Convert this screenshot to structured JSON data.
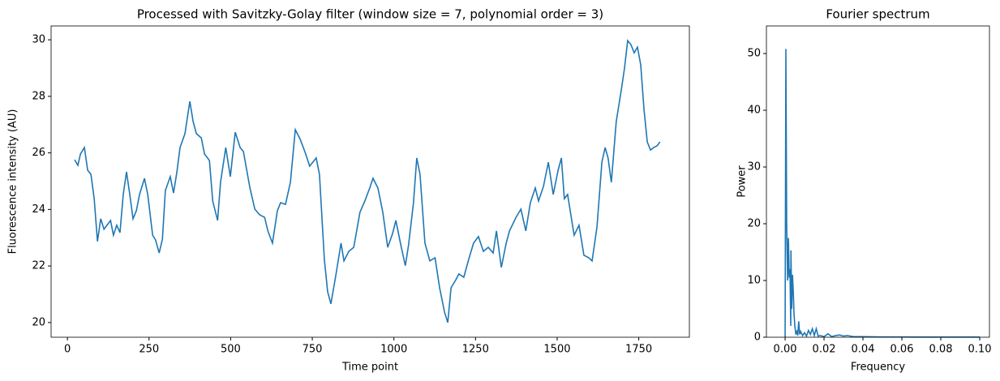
{
  "chart_data": [
    {
      "type": "line",
      "title": "Processed with Savitzky-Golay filter (window size = 7, polynomial order = 3)",
      "x_label": "Time point",
      "y_label": "Fluorescence intensity (AU)",
      "xlim": [
        -50,
        1905
      ],
      "ylim": [
        19.48,
        30.49
      ],
      "xticks": [
        0,
        250,
        500,
        750,
        1000,
        1250,
        1500,
        1750
      ],
      "yticks": [
        20,
        22,
        24,
        26,
        28,
        30
      ],
      "x": [
        22,
        32,
        40,
        52,
        62,
        72,
        82,
        92,
        102,
        112,
        132,
        141,
        151,
        161,
        171,
        181,
        191,
        201,
        211,
        221,
        236,
        246,
        261,
        270,
        281,
        291,
        300,
        315,
        325,
        335,
        345,
        360,
        375,
        385,
        395,
        410,
        420,
        435,
        445,
        460,
        469,
        485,
        499,
        514,
        529,
        539,
        559,
        574,
        589,
        604,
        614,
        628,
        643,
        653,
        668,
        683,
        698,
        713,
        728,
        742,
        762,
        772,
        787,
        797,
        807,
        822,
        838,
        847,
        862,
        877,
        896,
        911,
        926,
        936,
        951,
        966,
        981,
        996,
        1006,
        1021,
        1035,
        1045,
        1060,
        1070,
        1080,
        1095,
        1110,
        1126,
        1140,
        1155,
        1165,
        1175,
        1190,
        1199,
        1214,
        1229,
        1244,
        1259,
        1274,
        1289,
        1304,
        1314,
        1329,
        1344,
        1354,
        1374,
        1389,
        1404,
        1418,
        1433,
        1443,
        1458,
        1473,
        1488,
        1503,
        1513,
        1522,
        1532,
        1552,
        1567,
        1582,
        1597,
        1607,
        1622,
        1637,
        1647,
        1656,
        1666,
        1681,
        1696,
        1706,
        1716,
        1726,
        1736,
        1746,
        1756,
        1766,
        1776,
        1786,
        1796,
        1806,
        1815
      ],
      "series": [
        {
          "color": "#1f77b4",
          "values": [
            25.76,
            25.56,
            25.96,
            26.19,
            25.39,
            25.24,
            24.38,
            22.87,
            23.67,
            23.3,
            23.61,
            23.09,
            23.44,
            23.18,
            24.53,
            25.33,
            24.53,
            23.67,
            23.95,
            24.53,
            25.1,
            24.53,
            23.09,
            22.92,
            22.46,
            22.95,
            24.67,
            25.16,
            24.58,
            25.3,
            26.19,
            26.68,
            27.82,
            27.11,
            26.68,
            26.53,
            25.96,
            25.73,
            24.3,
            23.61,
            24.96,
            26.19,
            25.16,
            26.73,
            26.19,
            26.05,
            24.76,
            24.01,
            23.81,
            23.72,
            23.24,
            22.81,
            23.95,
            24.24,
            24.18,
            24.96,
            26.82,
            26.48,
            26.02,
            25.53,
            25.82,
            25.24,
            22.23,
            21.09,
            20.66,
            21.66,
            22.81,
            22.18,
            22.52,
            22.66,
            23.9,
            24.3,
            24.76,
            25.1,
            24.76,
            23.9,
            22.66,
            23.15,
            23.61,
            22.75,
            22.01,
            22.75,
            24.24,
            25.82,
            25.24,
            22.81,
            22.18,
            22.29,
            21.23,
            20.37,
            20.0,
            21.23,
            21.52,
            21.72,
            21.6,
            22.23,
            22.81,
            23.04,
            22.52,
            22.66,
            22.46,
            23.24,
            21.95,
            22.81,
            23.24,
            23.72,
            24.01,
            23.24,
            24.24,
            24.76,
            24.3,
            24.81,
            25.67,
            24.53,
            25.39,
            25.82,
            24.38,
            24.53,
            23.09,
            23.44,
            22.38,
            22.29,
            22.18,
            23.38,
            25.67,
            26.19,
            25.82,
            24.96,
            27.11,
            28.19,
            28.97,
            29.97,
            29.83,
            29.54,
            29.74,
            29.11,
            27.54,
            26.39,
            26.1,
            26.19,
            26.25,
            26.39
          ]
        }
      ]
    },
    {
      "type": "line",
      "title": "Fourier spectrum",
      "x_label": "Frequency",
      "y_label": "Power",
      "xlim": [
        -0.0096,
        0.105
      ],
      "ylim": [
        0,
        54.86
      ],
      "xticks": [
        {
          "value": 0,
          "label": "0.00"
        },
        {
          "value": 0.02,
          "label": "0.02"
        },
        {
          "value": 0.04,
          "label": "0.04"
        },
        {
          "value": 0.06,
          "label": "0.06"
        },
        {
          "value": 0.08,
          "label": "0.08"
        },
        {
          "value": 0.1,
          "label": "0.10"
        }
      ],
      "yticks": [
        0,
        10,
        20,
        30,
        40,
        50
      ],
      "x": [
        0,
        0.0004,
        0.0008,
        0.0013,
        0.0017,
        0.0021,
        0.0025,
        0.0029,
        0.003,
        0.0034,
        0.0038,
        0.0042,
        0.0046,
        0.005,
        0.0055,
        0.006,
        0.0065,
        0.007,
        0.0075,
        0.008,
        0.009,
        0.01,
        0.011,
        0.012,
        0.013,
        0.014,
        0.015,
        0.016,
        0.017,
        0.018,
        0.02,
        0.022,
        0.024,
        0.026,
        0.028,
        0.03,
        0.032,
        0.035,
        0.04,
        0.05,
        0.06,
        0.07,
        0.08,
        0.09,
        0.1
      ],
      "series": [
        {
          "color": "#1f77b4",
          "values": [
            0,
            50.8,
            20,
            10,
            17.5,
            10.5,
            12,
            2,
            15.3,
            5,
            11,
            8,
            4,
            2,
            0.5,
            1,
            0.3,
            2.8,
            0.5,
            1,
            0.3,
            0.8,
            0.2,
            1.2,
            0.5,
            1.5,
            0.3,
            1.5,
            0.2,
            0.3,
            0.1,
            0.6,
            0.1,
            0.3,
            0.4,
            0.2,
            0.3,
            0.1,
            0.1,
            0.05,
            0.05,
            0.03,
            0.03,
            0.02,
            0.02
          ]
        }
      ]
    }
  ]
}
